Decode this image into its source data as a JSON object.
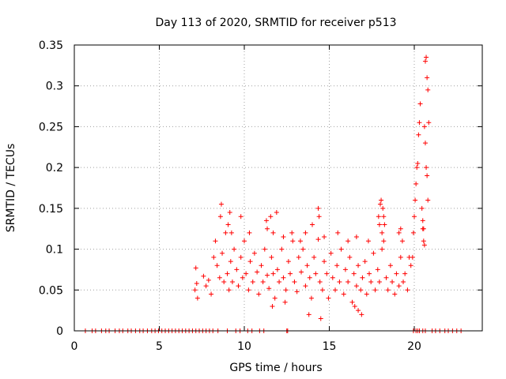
{
  "chart_data": {
    "type": "scatter",
    "title": "Day 113 of 2020, SRMTID for receiver p513",
    "xlabel": "GPS time / hours",
    "ylabel": "SRMTID / TECUs",
    "xlim": [
      0,
      24
    ],
    "ylim": [
      0,
      0.35
    ],
    "x_ticks": [
      0,
      5,
      10,
      15,
      20
    ],
    "x_tick_labels": [
      "0",
      "5",
      "10",
      "15",
      "20"
    ],
    "y_ticks": [
      0,
      0.05,
      0.1,
      0.15,
      0.2,
      0.25,
      0.3,
      0.35
    ],
    "y_tick_labels": [
      "0",
      "0.05",
      "0.1",
      "0.15",
      "0.2",
      "0.25",
      "0.3",
      "0.35"
    ],
    "grid": true,
    "marker": "+",
    "series": [
      {
        "name": "SRMTID",
        "color": "#ff0000",
        "x": [
          0.65,
          1.05,
          1.25,
          1.6,
          1.85,
          2.05,
          2.4,
          2.65,
          2.85,
          3.15,
          3.35,
          3.6,
          3.85,
          4.05,
          4.3,
          4.55,
          4.75,
          4.95,
          5.15,
          5.35,
          5.55,
          5.75,
          5.95,
          6.15,
          6.35,
          6.55,
          6.75,
          6.95,
          7.15,
          7.35,
          7.55,
          7.75,
          7.95,
          8.15,
          8.45,
          9.0,
          9.5,
          9.75,
          10.2,
          10.45,
          10.9,
          11.15,
          12.5,
          12.55,
          19.95,
          20.1,
          20.2,
          20.3,
          20.5,
          20.65,
          21.05,
          21.25,
          21.5,
          21.8,
          22.0,
          22.25,
          22.5,
          22.75,
          7.1,
          7.15,
          7.2,
          7.25,
          7.6,
          7.75,
          7.9,
          8.05,
          8.2,
          8.3,
          8.4,
          8.55,
          8.7,
          8.8,
          8.9,
          9.0,
          9.1,
          9.2,
          9.3,
          9.4,
          9.55,
          9.65,
          9.8,
          9.9,
          10.0,
          10.1,
          10.25,
          10.35,
          10.5,
          10.6,
          10.75,
          10.85,
          11.0,
          11.1,
          11.2,
          11.35,
          11.45,
          11.6,
          11.7,
          11.8,
          11.95,
          12.05,
          12.2,
          12.3,
          12.45,
          12.6,
          12.7,
          12.85,
          12.95,
          13.1,
          13.2,
          13.35,
          13.45,
          13.6,
          13.7,
          13.85,
          13.95,
          14.1,
          14.2,
          14.35,
          14.45,
          14.6,
          14.7,
          14.85,
          14.95,
          15.1,
          15.2,
          15.35,
          15.45,
          15.6,
          15.7,
          15.85,
          15.95,
          16.1,
          16.2,
          16.35,
          16.45,
          16.6,
          16.7,
          16.85,
          16.95,
          17.1,
          17.2,
          17.35,
          17.45,
          17.6,
          17.7,
          17.85,
          17.95,
          18.1,
          18.2,
          18.35,
          18.45,
          18.6,
          18.7,
          18.85,
          18.95,
          19.1,
          19.2,
          19.35,
          19.45,
          19.6,
          19.7,
          19.8,
          8.6,
          8.65,
          9.05,
          9.15,
          9.25,
          9.8,
          10.3,
          11.3,
          11.35,
          11.55,
          11.7,
          11.9,
          12.3,
          12.8,
          13.3,
          13.6,
          14.0,
          14.35,
          14.4,
          14.7,
          15.5,
          16.1,
          16.6,
          17.3,
          17.9,
          17.95,
          18.0,
          18.05,
          18.1,
          18.15,
          18.2,
          18.25,
          19.1,
          19.2,
          19.3,
          16.5,
          16.7,
          16.9,
          14.5,
          13.8,
          11.65,
          12.4,
          19.9,
          19.95,
          20.0,
          20.05,
          20.1,
          20.15,
          20.2,
          20.25,
          20.3,
          20.35,
          20.45,
          20.5,
          20.55,
          20.6,
          20.65,
          20.7,
          20.75,
          20.8,
          20.85,
          20.6,
          20.65,
          20.7,
          20.75,
          20.8,
          20.5,
          20.55
        ],
        "y": [
          0,
          0,
          0,
          0,
          0,
          0,
          0,
          0,
          0,
          0,
          0,
          0,
          0,
          0,
          0,
          0,
          0,
          0,
          0,
          0,
          0,
          0,
          0,
          0,
          0,
          0,
          0,
          0,
          0,
          0,
          0,
          0,
          0,
          0,
          0,
          0,
          0,
          0,
          0,
          0,
          0,
          0,
          0,
          0,
          0,
          0,
          0,
          0,
          0,
          0,
          0,
          0,
          0,
          0,
          0,
          0,
          0,
          0,
          0.05,
          0.077,
          0.058,
          0.04,
          0.067,
          0.055,
          0.062,
          0.045,
          0.09,
          0.11,
          0.08,
          0.065,
          0.095,
          0.06,
          0.12,
          0.07,
          0.05,
          0.085,
          0.06,
          0.1,
          0.075,
          0.055,
          0.09,
          0.065,
          0.11,
          0.07,
          0.05,
          0.085,
          0.06,
          0.095,
          0.072,
          0.045,
          0.08,
          0.06,
          0.1,
          0.068,
          0.052,
          0.09,
          0.07,
          0.04,
          0.075,
          0.06,
          0.1,
          0.065,
          0.05,
          0.085,
          0.07,
          0.11,
          0.06,
          0.048,
          0.09,
          0.072,
          0.1,
          0.055,
          0.08,
          0.065,
          0.04,
          0.09,
          0.07,
          0.112,
          0.06,
          0.05,
          0.085,
          0.07,
          0.04,
          0.095,
          0.065,
          0.05,
          0.08,
          0.06,
          0.1,
          0.045,
          0.075,
          0.06,
          0.09,
          0.035,
          0.07,
          0.055,
          0.08,
          0.05,
          0.065,
          0.085,
          0.045,
          0.07,
          0.06,
          0.095,
          0.05,
          0.075,
          0.06,
          0.1,
          0.11,
          0.065,
          0.05,
          0.08,
          0.06,
          0.045,
          0.07,
          0.055,
          0.09,
          0.06,
          0.07,
          0.05,
          0.09,
          0.08,
          0.14,
          0.155,
          0.13,
          0.145,
          0.12,
          0.14,
          0.12,
          0.135,
          0.125,
          0.14,
          0.12,
          0.145,
          0.115,
          0.12,
          0.11,
          0.12,
          0.13,
          0.15,
          0.14,
          0.115,
          0.12,
          0.11,
          0.115,
          0.11,
          0.14,
          0.13,
          0.155,
          0.16,
          0.12,
          0.15,
          0.14,
          0.13,
          0.12,
          0.125,
          0.11,
          0.03,
          0.025,
          0.02,
          0.015,
          0.02,
          0.03,
          0.035,
          0.09,
          0.12,
          0.14,
          0.16,
          0.18,
          0.2,
          0.205,
          0.24,
          0.255,
          0.278,
          0.15,
          0.125,
          0.11,
          0.105,
          0.33,
          0.335,
          0.31,
          0.295,
          0.255,
          0.25,
          0.23,
          0.2,
          0.19,
          0.16,
          0.135,
          0.125
        ]
      }
    ]
  }
}
